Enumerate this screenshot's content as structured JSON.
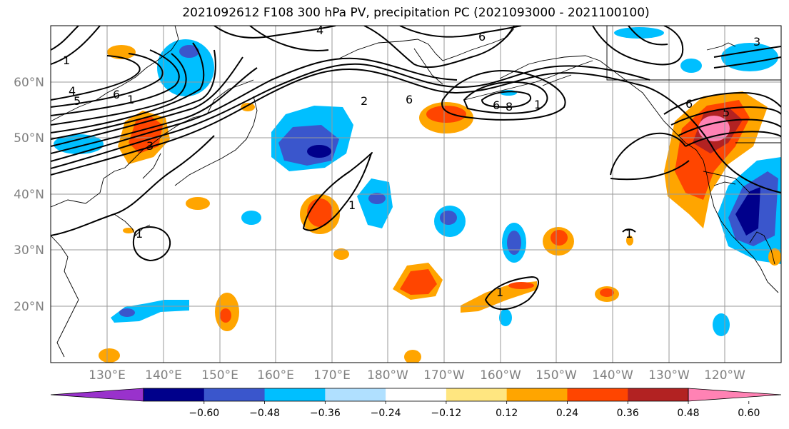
{
  "title": "2021092612 F108 300 hPa PV, precipitation PC (2021093000 - 2021100100)",
  "map": {
    "lon_labels": [
      "130°E",
      "140°E",
      "150°E",
      "160°E",
      "170°E",
      "180°W",
      "170°W",
      "160°W",
      "150°W",
      "140°W",
      "130°W",
      "120°W"
    ],
    "lat_labels": [
      "60°N",
      "50°N",
      "40°N",
      "30°N",
      "20°N"
    ],
    "grid": true,
    "contour_labels": [
      "1",
      "4",
      "5",
      "6",
      "1",
      "3",
      "4",
      "6",
      "2",
      "6",
      "6",
      "8",
      "1",
      "6",
      "5",
      "3",
      "1",
      "1",
      "1",
      "1"
    ]
  },
  "colorbar": {
    "extend": "both",
    "ticks": [
      "−0.60",
      "−0.48",
      "−0.36",
      "−0.24",
      "−0.12",
      "0.12",
      "0.24",
      "0.36",
      "0.48",
      "0.60"
    ],
    "colors": [
      "#9932cc",
      "#00008b",
      "#3a56cc",
      "#00bfff",
      "#b0e0ff",
      "#ffffff",
      "#ffe680",
      "#ffa500",
      "#ff4500",
      "#b22222",
      "#ff82b4"
    ]
  }
}
